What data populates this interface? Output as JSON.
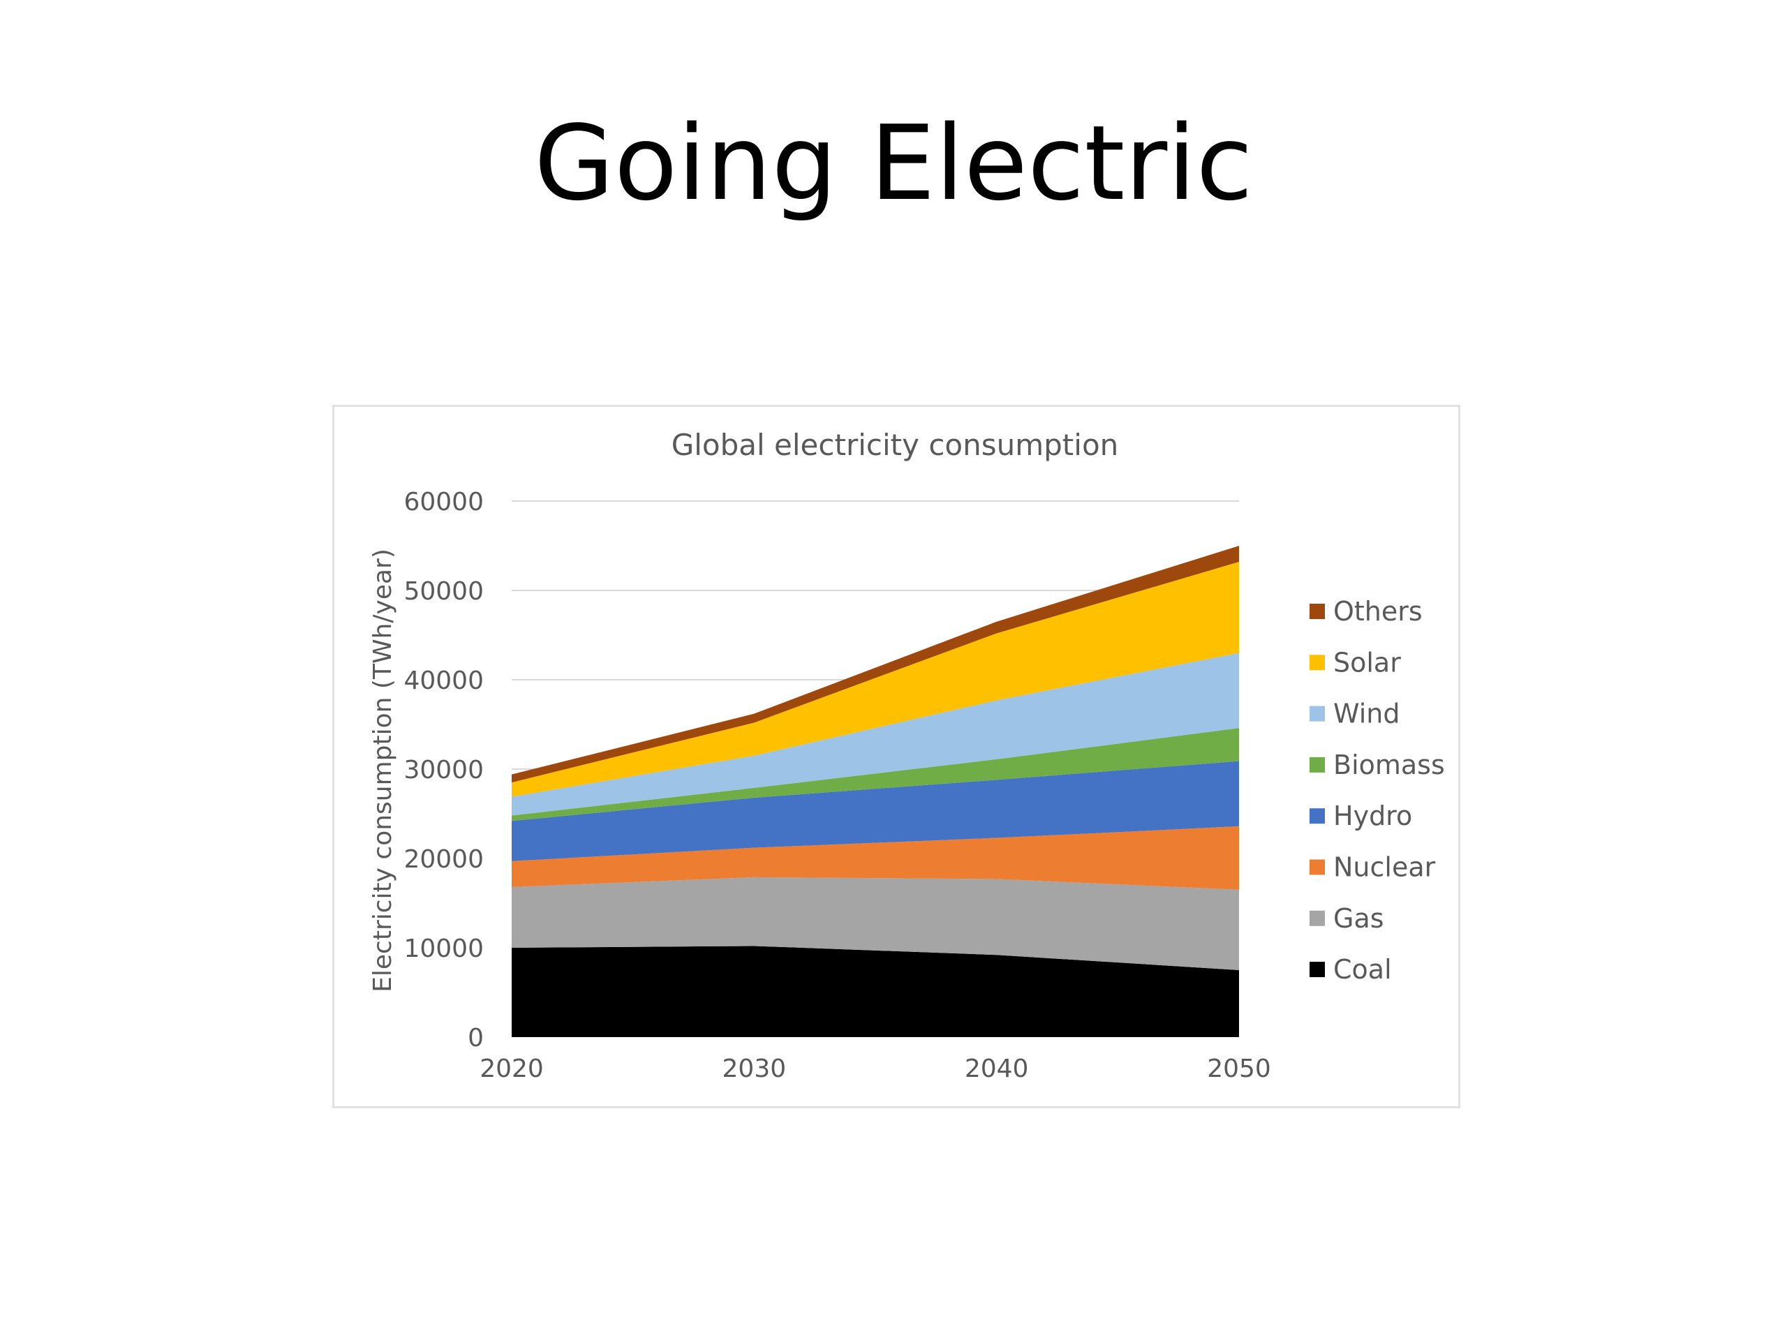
{
  "slide": {
    "title": "Going Electric"
  },
  "chart_data": {
    "type": "area",
    "stacked": true,
    "title": "Global electricity consumption",
    "xlabel": "",
    "ylabel": "Electricity consumption (TWh/year)",
    "x": [
      2020,
      2030,
      2040,
      2050
    ],
    "xticks": [
      "2020",
      "2030",
      "2040",
      "2050"
    ],
    "yticks": [
      "0",
      "10000",
      "20000",
      "30000",
      "40000",
      "50000",
      "60000"
    ],
    "ylim": [
      0,
      60000
    ],
    "grid": true,
    "legend_position": "right",
    "series": [
      {
        "name": "Coal",
        "color": "#000000",
        "values": [
          10000,
          10200,
          9200,
          7500
        ]
      },
      {
        "name": "Gas",
        "color": "#a5a5a5",
        "values": [
          6800,
          7700,
          8500,
          9000
        ]
      },
      {
        "name": "Nuclear",
        "color": "#ed7d31",
        "values": [
          2900,
          3300,
          4600,
          7100
        ]
      },
      {
        "name": "Hydro",
        "color": "#4472c4",
        "values": [
          4500,
          5600,
          6500,
          7300
        ]
      },
      {
        "name": "Biomass",
        "color": "#70ad47",
        "values": [
          600,
          1100,
          2300,
          3700
        ]
      },
      {
        "name": "Wind",
        "color": "#9dc3e6",
        "values": [
          2100,
          3600,
          6600,
          8400
        ]
      },
      {
        "name": "Solar",
        "color": "#ffc000",
        "values": [
          1600,
          3700,
          7500,
          10200
        ]
      },
      {
        "name": "Others",
        "color": "#9e480e",
        "values": [
          900,
          1000,
          1300,
          1800
        ]
      }
    ],
    "legend_order": [
      "Others",
      "Solar",
      "Wind",
      "Biomass",
      "Hydro",
      "Nuclear",
      "Gas",
      "Coal"
    ],
    "colors": {
      "gridline": "#d9d9d9",
      "axis_text": "#595959",
      "frame": "#e2e2e2"
    }
  }
}
